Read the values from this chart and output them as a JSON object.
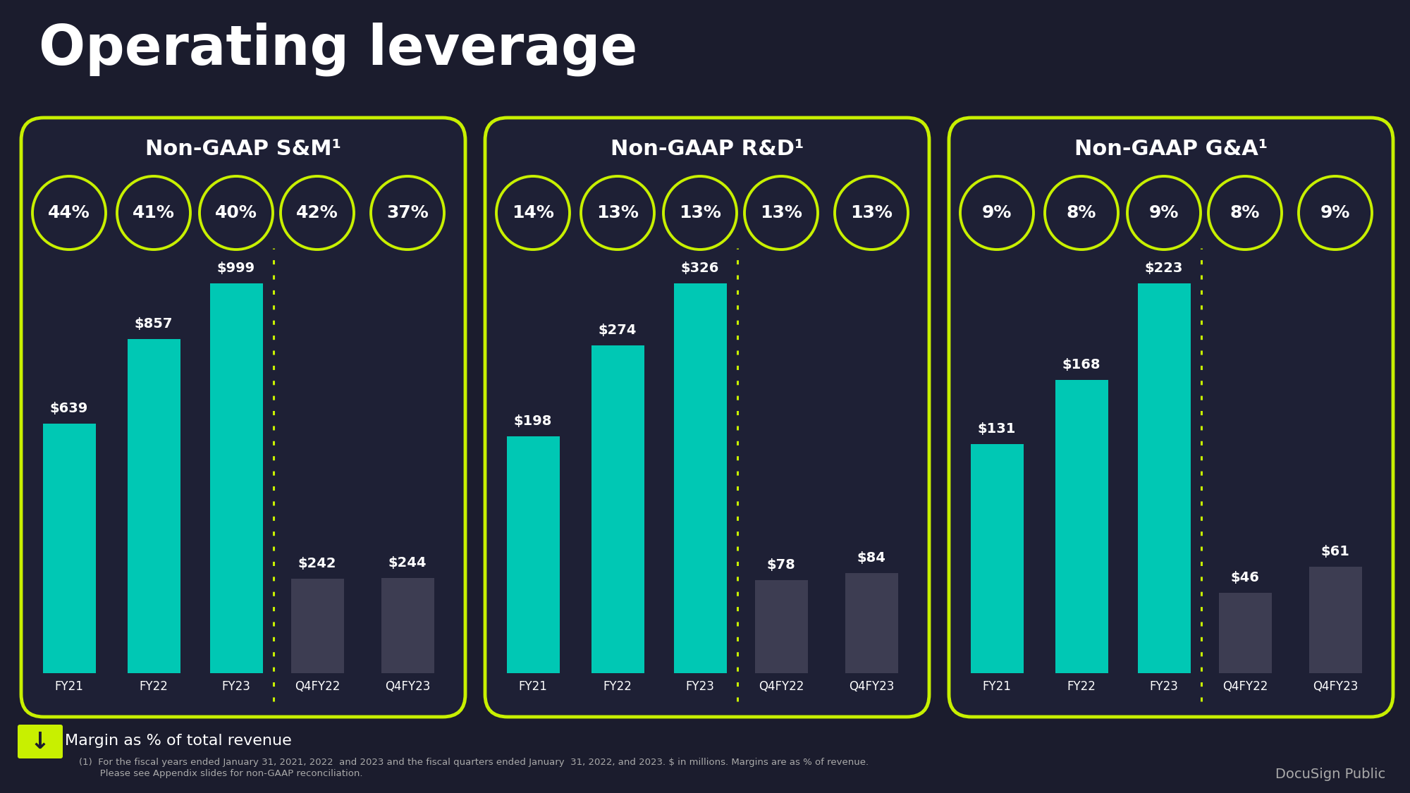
{
  "title": "Operating leverage",
  "bg_color": "#1b1c2d",
  "panel_bg": "#1e2035",
  "text_color": "#ffffff",
  "accent_color": "#c8f000",
  "bar_color_teal": "#00c8b4",
  "bar_color_dark": "#3d3d52",
  "panels": [
    {
      "title": "Non-GAAP S&M¹",
      "categories": [
        "FY21",
        "FY22",
        "FY23",
        "Q4FY22",
        "Q4FY23"
      ],
      "values": [
        639,
        857,
        999,
        242,
        244
      ],
      "labels": [
        "$639",
        "$857",
        "$999",
        "$242",
        "$244"
      ],
      "percentages": [
        "44%",
        "41%",
        "40%",
        "42%",
        "37%"
      ]
    },
    {
      "title": "Non-GAAP R&D¹",
      "categories": [
        "FY21",
        "FY22",
        "FY23",
        "Q4FY22",
        "Q4FY23"
      ],
      "values": [
        198,
        274,
        326,
        78,
        84
      ],
      "labels": [
        "$198",
        "$274",
        "$326",
        "$78",
        "$84"
      ],
      "percentages": [
        "14%",
        "13%",
        "13%",
        "13%",
        "13%"
      ]
    },
    {
      "title": "Non-GAAP G&A¹",
      "categories": [
        "FY21",
        "FY22",
        "FY23",
        "Q4FY22",
        "Q4FY23"
      ],
      "values": [
        131,
        168,
        223,
        46,
        61
      ],
      "labels": [
        "$131",
        "$168",
        "$223",
        "$46",
        "$61"
      ],
      "percentages": [
        "9%",
        "8%",
        "9%",
        "8%",
        "9%"
      ]
    }
  ],
  "legend_text": "Margin as % of total revenue",
  "footnote_line1": "(1)  For the fiscal years ended January 31, 2021, 2022  and 2023 and the fiscal quarters ended January  31, 2022, and 2023. $ in millions. Margins are as % of revenue.",
  "footnote_line2": "       Please see Appendix slides for non-GAAP reconciliation.",
  "docusign_text": "DocuSign Public"
}
